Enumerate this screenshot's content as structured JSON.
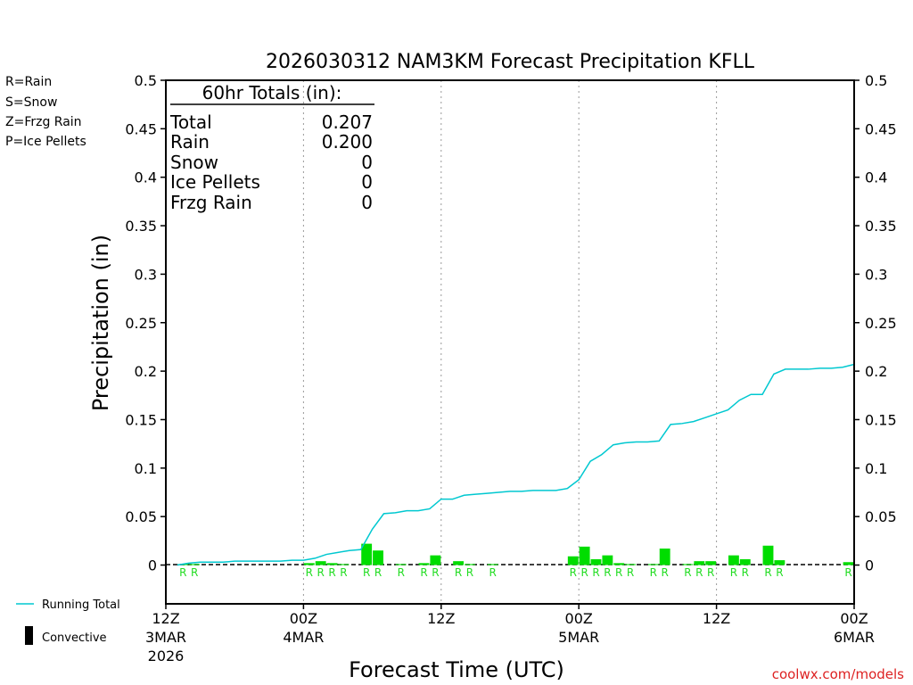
{
  "title": "2026030312 NAM3KM Forecast Precipitation KFLL",
  "legend_types": [
    {
      "text": "R=Rain",
      "color": "#22dd22"
    },
    {
      "text": "S=Snow",
      "color": "#3355ff"
    },
    {
      "text": "Z=Frzg Rain",
      "color": "#ff8822"
    },
    {
      "text": "P=Ice Pellets",
      "color": "#ee1199"
    }
  ],
  "totals_box": {
    "header": "60hr Totals (in):",
    "rows": [
      {
        "label": "Total",
        "value": "0.207"
      },
      {
        "label": "Rain",
        "value": "0.200"
      },
      {
        "label": "Snow",
        "value": "0"
      },
      {
        "label": "Ice Pellets",
        "value": "0"
      },
      {
        "label": "Frzg Rain",
        "value": "0"
      }
    ]
  },
  "bottom_legend": {
    "running_total": "Running Total",
    "convective": "Convective"
  },
  "credit": "coolwx.com/models",
  "colors": {
    "bar": "#00dd00",
    "line": "#00c8d0",
    "ptype_r": "#22dd22",
    "credit": "#dd2222"
  },
  "chart_data": {
    "type": "bar",
    "title": "2026030312 NAM3KM Forecast Precipitation KFLL",
    "xlabel": "Forecast Time (UTC)",
    "ylabel": "Precipitation (in)",
    "ylim": [
      -0.04,
      0.5
    ],
    "yticks": [
      "0.5",
      "0.45",
      "0.4",
      "0.35",
      "0.3",
      "0.25",
      "0.2",
      "0.15",
      "0.1",
      "0.05",
      "0"
    ],
    "xlim_hours": [
      0,
      60
    ],
    "xticks": [
      {
        "hour": 0,
        "line1": "12Z",
        "line2": "3MAR",
        "line3": "2026"
      },
      {
        "hour": 12,
        "line1": "00Z",
        "line2": "4MAR",
        "line3": ""
      },
      {
        "hour": 24,
        "line1": "12Z",
        "line2": "",
        "line3": ""
      },
      {
        "hour": 36,
        "line1": "00Z",
        "line2": "5MAR",
        "line3": ""
      },
      {
        "hour": 48,
        "line1": "12Z",
        "line2": "",
        "line3": ""
      },
      {
        "hour": 60,
        "line1": "00Z",
        "line2": "6MAR",
        "line3": ""
      }
    ],
    "series": [
      {
        "name": "Hourly Precipitation",
        "hours": [
          2,
          3,
          13,
          14,
          15,
          16,
          18,
          19,
          21,
          23,
          24,
          26,
          27,
          29,
          36,
          37,
          38,
          39,
          40,
          41,
          43,
          44,
          46,
          47,
          48,
          50,
          51,
          53,
          54,
          60
        ],
        "values": [
          0.001,
          0.001,
          0.002,
          0.004,
          0.002,
          0.001,
          0.022,
          0.015,
          0.001,
          0.002,
          0.01,
          0.004,
          0.001,
          0.001,
          0.009,
          0.019,
          0.006,
          0.01,
          0.002,
          0.001,
          0.001,
          0.017,
          0.001,
          0.004,
          0.004,
          0.01,
          0.006,
          0.02,
          0.005,
          0.003
        ],
        "labels": [
          "R",
          "R",
          "R",
          "R",
          "R",
          "R",
          "R",
          "R",
          "R",
          "R",
          "R",
          "R",
          "R",
          "R",
          "R",
          "R",
          "R",
          "R",
          "R",
          "R",
          "R",
          "R",
          "R",
          "R",
          "R",
          "R",
          "R",
          "R",
          "R",
          "R"
        ]
      },
      {
        "name": "Running Total",
        "hours": [
          1,
          2,
          3,
          4,
          5,
          6,
          7,
          8,
          9,
          10,
          11,
          12,
          13,
          14,
          15,
          16,
          17,
          18,
          19,
          20,
          21,
          22,
          23,
          24,
          25,
          26,
          27,
          28,
          29,
          30,
          31,
          32,
          33,
          34,
          35,
          36,
          37,
          38,
          39,
          40,
          41,
          42,
          43,
          44,
          45,
          46,
          47,
          48,
          49,
          50,
          51,
          52,
          53,
          54,
          55,
          56,
          57,
          58,
          59,
          60
        ],
        "values": [
          0.0,
          0.002,
          0.003,
          0.003,
          0.003,
          0.004,
          0.004,
          0.004,
          0.004,
          0.004,
          0.005,
          0.005,
          0.007,
          0.011,
          0.013,
          0.015,
          0.016,
          0.037,
          0.053,
          0.054,
          0.056,
          0.056,
          0.058,
          0.068,
          0.068,
          0.072,
          0.073,
          0.074,
          0.075,
          0.076,
          0.076,
          0.077,
          0.077,
          0.077,
          0.079,
          0.088,
          0.107,
          0.114,
          0.124,
          0.126,
          0.127,
          0.127,
          0.128,
          0.145,
          0.146,
          0.148,
          0.152,
          0.156,
          0.16,
          0.17,
          0.176,
          0.176,
          0.197,
          0.202,
          0.202,
          0.202,
          0.203,
          0.203,
          0.204,
          0.207
        ]
      }
    ]
  }
}
